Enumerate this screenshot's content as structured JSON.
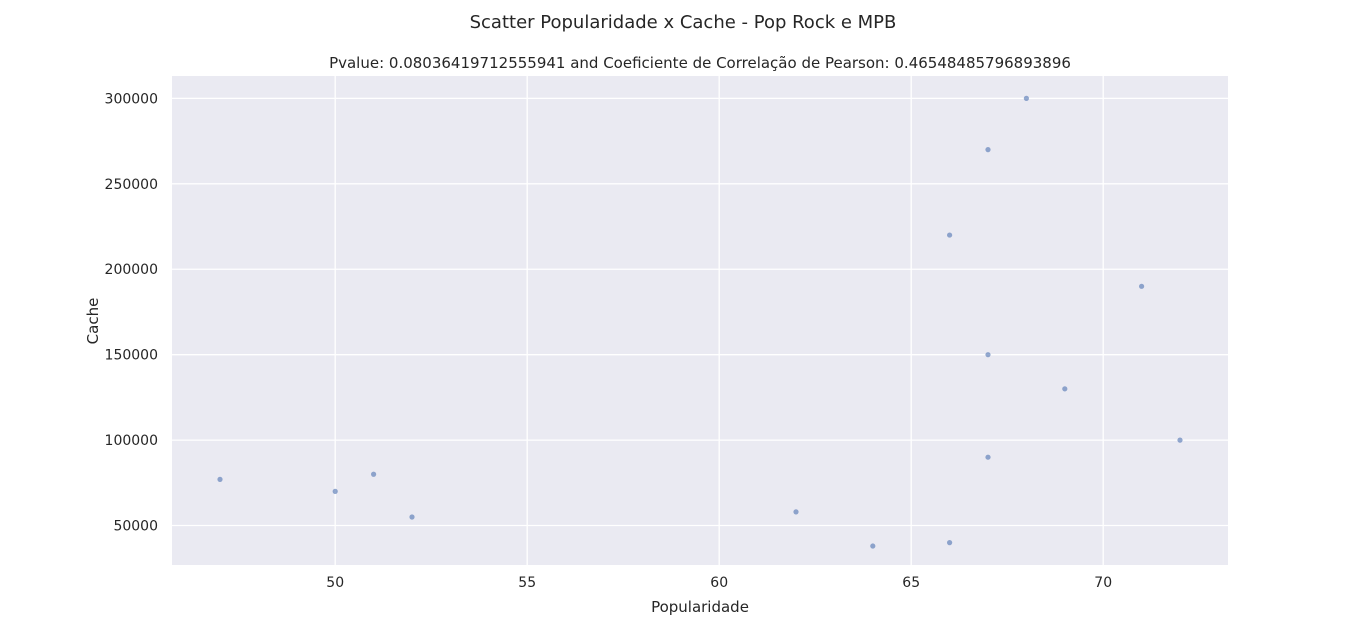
{
  "chart_data": {
    "type": "scatter",
    "suptitle": "Scatter Popularidade x Cache - Pop Rock e MPB",
    "title": "Pvalue: 0.08036419712555941 and Coeficiente de Correlação de Pearson: 0.46548485796893896",
    "xlabel": "Popularidade",
    "ylabel": "Cache",
    "xlim": [
      45.75,
      73.25
    ],
    "ylim": [
      26900,
      313100
    ],
    "xticks": [
      50,
      55,
      60,
      65,
      70
    ],
    "yticks": [
      50000,
      100000,
      150000,
      200000,
      250000,
      300000
    ],
    "grid": true,
    "colors": {
      "background": "#EAEAF2",
      "grid": "#FFFFFF",
      "marker": "#4C72B0"
    },
    "points": [
      {
        "x": 47,
        "y": 77000
      },
      {
        "x": 50,
        "y": 70000
      },
      {
        "x": 51,
        "y": 80000
      },
      {
        "x": 52,
        "y": 55000
      },
      {
        "x": 62,
        "y": 58000
      },
      {
        "x": 64,
        "y": 38000
      },
      {
        "x": 66,
        "y": 40000
      },
      {
        "x": 66,
        "y": 220000
      },
      {
        "x": 67,
        "y": 270000
      },
      {
        "x": 67,
        "y": 150000
      },
      {
        "x": 67,
        "y": 90000
      },
      {
        "x": 68,
        "y": 300000
      },
      {
        "x": 69,
        "y": 130000
      },
      {
        "x": 71,
        "y": 190000
      },
      {
        "x": 72,
        "y": 100000
      }
    ]
  }
}
